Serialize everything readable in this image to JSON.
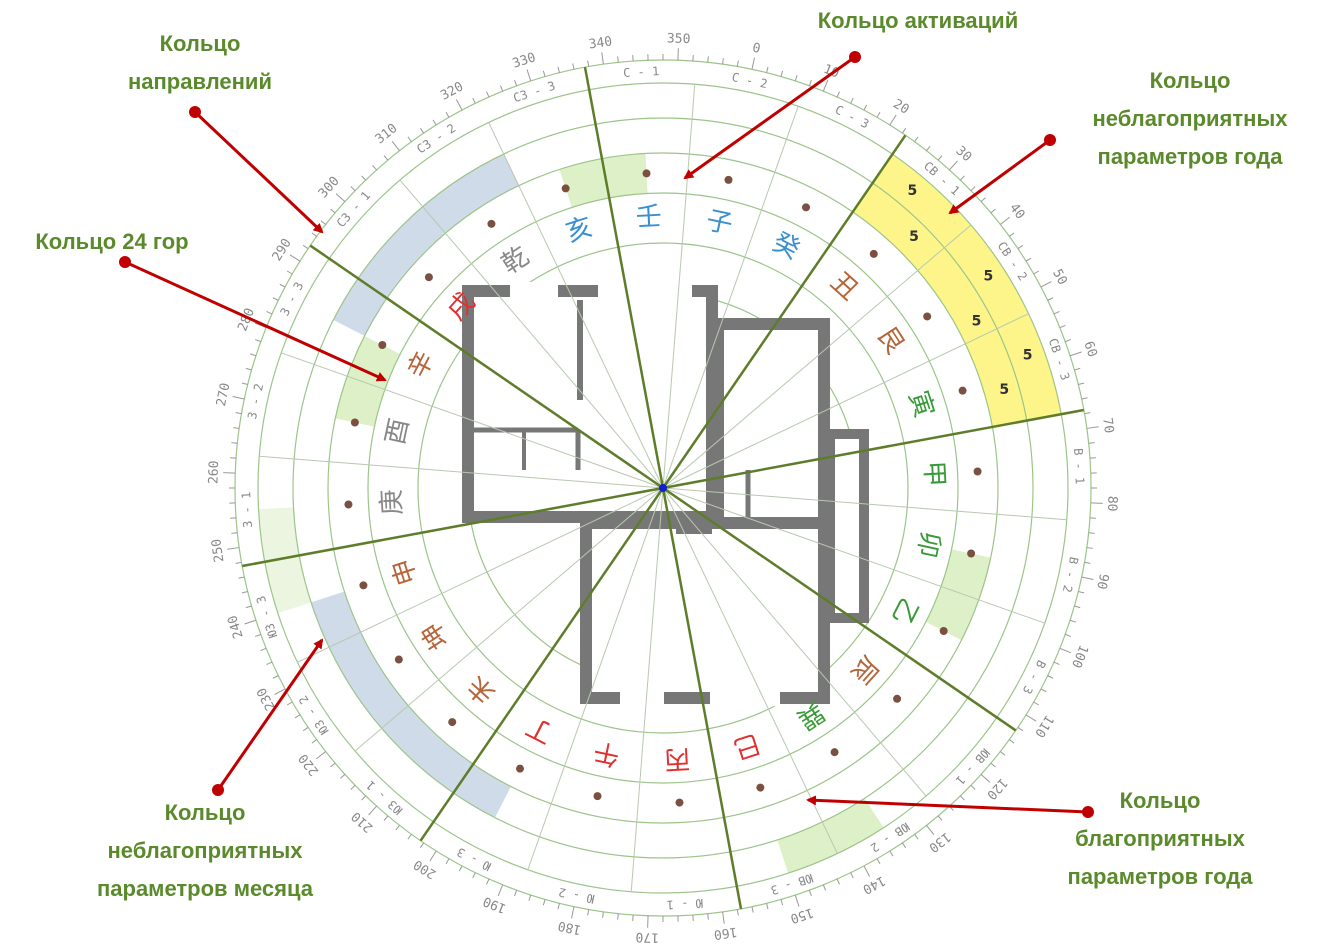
{
  "compass": {
    "degrees": [
      0,
      10,
      20,
      30,
      40,
      50,
      60,
      70,
      80,
      90,
      100,
      110,
      120,
      130,
      140,
      150,
      160,
      170,
      180,
      190,
      200,
      210,
      220,
      230,
      240,
      250,
      260,
      270,
      280,
      290,
      300,
      310,
      320,
      330,
      340,
      350
    ],
    "sectors": [
      {
        "deg": 345,
        "direction": "С - 1",
        "mountain": "壬",
        "color": "#3a8fd0"
      },
      {
        "deg": 0,
        "direction": "С - 2",
        "mountain": "子",
        "color": "#3a8fd0"
      },
      {
        "deg": 15,
        "direction": "С - 3",
        "mountain": "癸",
        "color": "#3a8fd0"
      },
      {
        "deg": 30,
        "direction": "СВ - 1",
        "mountain": "丑",
        "color": "#b5653a"
      },
      {
        "deg": 45,
        "direction": "СВ - 2",
        "mountain": "艮",
        "color": "#b5653a"
      },
      {
        "deg": 60,
        "direction": "СВ - 3",
        "mountain": "寅",
        "color": "#3a9a3a"
      },
      {
        "deg": 75,
        "direction": "В - 1",
        "mountain": "甲",
        "color": "#3a9a3a"
      },
      {
        "deg": 90,
        "direction": "В - 2",
        "mountain": "卯",
        "color": "#3a9a3a"
      },
      {
        "deg": 105,
        "direction": "В - 3",
        "mountain": "乙",
        "color": "#3a9a3a"
      },
      {
        "deg": 120,
        "direction": "ЮВ - 1",
        "mountain": "辰",
        "color": "#b5653a"
      },
      {
        "deg": 135,
        "direction": "ЮВ - 2",
        "mountain": "巽",
        "color": "#3a9a3a"
      },
      {
        "deg": 150,
        "direction": "ЮВ - 3",
        "mountain": "巳",
        "color": "#e03030"
      },
      {
        "deg": 165,
        "direction": "Ю - 1",
        "mountain": "丙",
        "color": "#e03030"
      },
      {
        "deg": 180,
        "direction": "Ю - 2",
        "mountain": "午",
        "color": "#e03030"
      },
      {
        "deg": 195,
        "direction": "Ю - 3",
        "mountain": "丁",
        "color": "#e03030"
      },
      {
        "deg": 210,
        "direction": "ЮЗ - 1",
        "mountain": "未",
        "color": "#b5653a"
      },
      {
        "deg": 225,
        "direction": "ЮЗ - 2",
        "mountain": "坤",
        "color": "#b5653a"
      },
      {
        "deg": 240,
        "direction": "ЮЗ - 3",
        "mountain": "申",
        "color": "#b5653a"
      },
      {
        "deg": 255,
        "direction": "З - 1",
        "mountain": "庚",
        "color": "#888888"
      },
      {
        "deg": 270,
        "direction": "З - 2",
        "mountain": "酉",
        "color": "#888888"
      },
      {
        "deg": 285,
        "direction": "З - 3",
        "mountain": "辛",
        "color": "#b5653a"
      },
      {
        "deg": 300,
        "direction": "СЗ - 1",
        "mountain": "戌",
        "color": "#e03030"
      },
      {
        "deg": 315,
        "direction": "СЗ - 2",
        "mountain": "乾",
        "color": "#888888"
      },
      {
        "deg": 330,
        "direction": "СЗ - 3",
        "mountain": "亥",
        "color": "#3a8fd0"
      }
    ],
    "year_marks": [
      {
        "deg": 28,
        "r": 388,
        "text": "5"
      },
      {
        "deg": 33,
        "r": 355,
        "text": "5"
      },
      {
        "deg": 45,
        "r": 388,
        "text": "5"
      },
      {
        "deg": 50,
        "r": 355,
        "text": "5"
      },
      {
        "deg": 58,
        "r": 388,
        "text": "5"
      },
      {
        "deg": 62,
        "r": 355,
        "text": "5"
      }
    ]
  },
  "annotations": [
    {
      "lines": [
        "Кольцо",
        "направлений"
      ]
    },
    {
      "lines": [
        "Кольцо активаций"
      ]
    },
    {
      "lines": [
        "Кольцо",
        "неблагоприятных",
        "параметров года"
      ]
    },
    {
      "lines": [
        "Кольцо 24 гор"
      ]
    },
    {
      "lines": [
        "Кольцо",
        "неблагоприятных",
        "параметров месяца"
      ]
    },
    {
      "lines": [
        "Кольцо",
        "благоприятных",
        "параметров года"
      ]
    }
  ]
}
